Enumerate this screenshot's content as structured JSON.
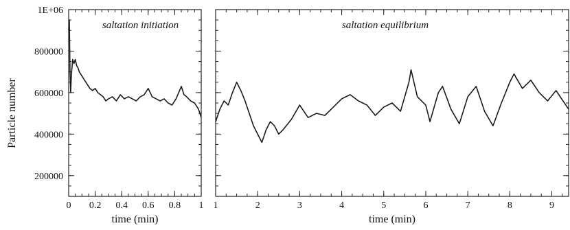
{
  "figure": {
    "ylabel": "Particle number",
    "y_tick_labels": [
      "1E+06",
      "800000",
      "600000",
      "400000",
      "200000"
    ]
  },
  "chart_data": [
    {
      "type": "line",
      "annotation": "saltation initiation",
      "xlabel": "time (min)",
      "ylabel": "Particle number",
      "xlim": [
        0,
        1
      ],
      "ylim": [
        100000,
        1000000
      ],
      "x_ticks": [
        0,
        0.2,
        0.4,
        0.6,
        0.8,
        1
      ],
      "x_tick_labels": [
        "0",
        "0.2",
        "0.4",
        "0.6",
        "0.8",
        "1"
      ],
      "series": [
        {
          "color": "#1a1a1a",
          "x": [
            0.0,
            0.005,
            0.01,
            0.015,
            0.02,
            0.03,
            0.04,
            0.05,
            0.06,
            0.07,
            0.08,
            0.1,
            0.12,
            0.14,
            0.16,
            0.18,
            0.2,
            0.22,
            0.24,
            0.26,
            0.28,
            0.3,
            0.33,
            0.36,
            0.39,
            0.42,
            0.45,
            0.48,
            0.51,
            0.54,
            0.57,
            0.6,
            0.63,
            0.66,
            0.69,
            0.72,
            0.75,
            0.78,
            0.81,
            0.83,
            0.85,
            0.87,
            0.89,
            0.92,
            0.95,
            0.98,
            1.0
          ],
          "y": [
            900000,
            950000,
            700000,
            600000,
            680000,
            760000,
            740000,
            760000,
            730000,
            720000,
            700000,
            680000,
            660000,
            640000,
            620000,
            610000,
            620000,
            600000,
            590000,
            580000,
            560000,
            570000,
            580000,
            560000,
            590000,
            570000,
            580000,
            570000,
            560000,
            580000,
            590000,
            620000,
            580000,
            570000,
            560000,
            570000,
            550000,
            540000,
            570000,
            600000,
            630000,
            590000,
            580000,
            560000,
            550000,
            520000,
            480000
          ]
        }
      ]
    },
    {
      "type": "line",
      "annotation": "saltation equilibrium",
      "xlabel": "time (min)",
      "xlim": [
        1,
        9.4
      ],
      "ylim": [
        100000,
        1000000
      ],
      "x_ticks": [
        1,
        2,
        3,
        4,
        5,
        6,
        7,
        8,
        9
      ],
      "x_tick_labels": [
        "1",
        "2",
        "3",
        "4",
        "5",
        "6",
        "7",
        "8",
        "9"
      ],
      "series": [
        {
          "color": "#1a1a1a",
          "x": [
            1.0,
            1.1,
            1.2,
            1.3,
            1.4,
            1.5,
            1.6,
            1.7,
            1.8,
            1.9,
            2.0,
            2.1,
            2.2,
            2.3,
            2.4,
            2.5,
            2.6,
            2.8,
            3.0,
            3.2,
            3.4,
            3.6,
            3.8,
            4.0,
            4.2,
            4.4,
            4.6,
            4.8,
            5.0,
            5.2,
            5.4,
            5.6,
            5.65,
            5.8,
            6.0,
            6.1,
            6.3,
            6.4,
            6.6,
            6.8,
            7.0,
            7.2,
            7.4,
            7.6,
            7.8,
            8.0,
            8.1,
            8.3,
            8.5,
            8.7,
            8.9,
            9.1,
            9.3,
            9.4
          ],
          "y": [
            460000,
            520000,
            560000,
            540000,
            600000,
            650000,
            610000,
            560000,
            500000,
            440000,
            400000,
            360000,
            420000,
            460000,
            440000,
            400000,
            420000,
            470000,
            540000,
            480000,
            500000,
            490000,
            530000,
            570000,
            590000,
            560000,
            540000,
            490000,
            530000,
            550000,
            510000,
            650000,
            710000,
            580000,
            540000,
            460000,
            600000,
            630000,
            520000,
            450000,
            580000,
            630000,
            510000,
            440000,
            550000,
            650000,
            690000,
            620000,
            660000,
            600000,
            560000,
            610000,
            550000,
            520000
          ]
        }
      ]
    }
  ]
}
